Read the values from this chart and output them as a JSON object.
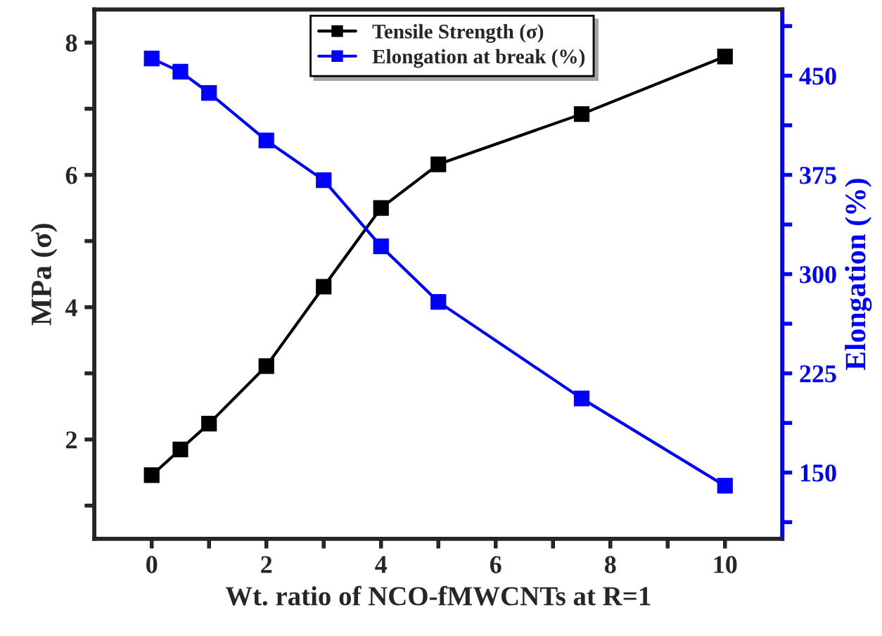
{
  "chart_data": {
    "type": "line",
    "xlabel": "Wt. ratio of NCO-fMWCNTs at R=1",
    "ylabel": "MPa (σ)",
    "y2label": "Elongation (%)",
    "x": [
      0,
      0.5,
      1,
      2,
      3,
      4,
      5,
      7.5,
      10
    ],
    "series": [
      {
        "name": "Tensile Strength (σ)",
        "color": "#000000",
        "values": [
          1.46,
          1.85,
          2.24,
          3.11,
          4.31,
          5.5,
          6.16,
          6.92,
          7.79
        ]
      },
      {
        "name": "Elongation at break (%)",
        "color": "#0000ff",
        "axis": "y2",
        "values": [
          463,
          453,
          437,
          401,
          371,
          321,
          279,
          206,
          140
        ]
      }
    ],
    "xlim": [
      -1,
      11
    ],
    "xticks": [
      0,
      {
        "value": 1,
        "label": null
      },
      2,
      {
        "value": 3,
        "label": null
      },
      4,
      {
        "value": 5,
        "label": null
      },
      6,
      {
        "value": 7,
        "label": null
      },
      8,
      {
        "value": 9,
        "label": null
      },
      10
    ],
    "ylim": [
      0.5,
      8.5
    ],
    "yticks": [
      {
        "value": 1,
        "label": null
      },
      2,
      {
        "value": 3,
        "label": null
      },
      4,
      {
        "value": 5,
        "label": null
      },
      6,
      {
        "value": 7,
        "label": null
      },
      8
    ],
    "y2lim": [
      100,
      500
    ],
    "y2ticks": [
      {
        "value": 112.5,
        "label": null
      },
      150,
      {
        "value": 187.5,
        "label": null
      },
      225,
      {
        "value": 262.5,
        "label": null
      },
      300,
      {
        "value": 337.5,
        "label": null
      },
      375,
      {
        "value": 412.5,
        "label": null
      },
      450,
      {
        "value": 487.5,
        "label": null
      }
    ],
    "marker": "square",
    "line_style": "solid",
    "legend": "top",
    "grid": false
  }
}
